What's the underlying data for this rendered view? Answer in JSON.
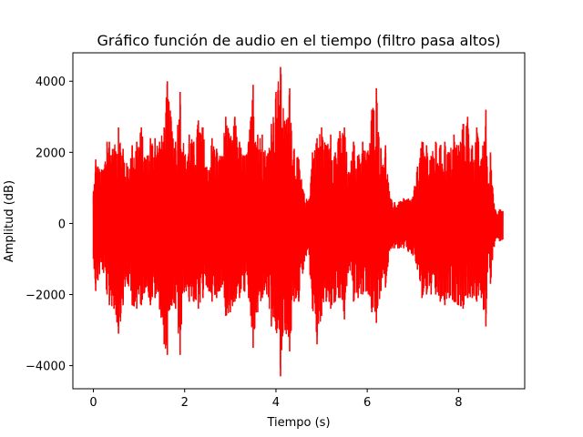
{
  "chart_data": {
    "type": "line",
    "title": "Gráfico función de audio en el tiempo (filtro pasa altos)",
    "xlabel": "Tiempo (s)",
    "ylabel": "Amplitud (dB)",
    "xlim": [
      -0.45,
      9.45
    ],
    "ylim": [
      -4650,
      4800
    ],
    "x_ticks": [
      0,
      2,
      4,
      6,
      8
    ],
    "x_tick_labels": [
      "0",
      "2",
      "4",
      "6",
      "8"
    ],
    "y_ticks": [
      -4000,
      -2000,
      0,
      2000,
      4000
    ],
    "y_tick_labels": [
      "−4000",
      "−2000",
      "0",
      "2000",
      "4000"
    ],
    "grid": false,
    "series": [
      {
        "color": "#ff0000",
        "envelope_t": [
          0.0,
          0.05,
          0.1,
          0.2,
          0.3,
          0.35,
          0.45,
          0.55,
          0.65,
          0.75,
          0.85,
          0.95,
          1.05,
          1.15,
          1.25,
          1.35,
          1.45,
          1.55,
          1.62,
          1.7,
          1.8,
          1.9,
          2.0,
          2.1,
          2.2,
          2.3,
          2.4,
          2.5,
          2.6,
          2.7,
          2.8,
          2.9,
          3.0,
          3.1,
          3.2,
          3.3,
          3.4,
          3.5,
          3.6,
          3.7,
          3.8,
          3.9,
          4.0,
          4.1,
          4.2,
          4.3,
          4.4,
          4.5,
          4.6,
          4.7,
          4.8,
          4.9,
          5.0,
          5.1,
          5.2,
          5.3,
          5.4,
          5.5,
          5.6,
          5.7,
          5.8,
          5.9,
          6.0,
          6.1,
          6.2,
          6.3,
          6.4,
          6.5,
          6.6,
          6.7,
          6.8,
          6.9,
          7.0,
          7.1,
          7.2,
          7.3,
          7.4,
          7.5,
          7.6,
          7.7,
          7.8,
          7.9,
          8.0,
          8.1,
          8.2,
          8.3,
          8.4,
          8.5,
          8.6,
          8.65,
          8.7,
          8.8,
          8.9,
          8.97
        ],
        "envelope_max": [
          900,
          1800,
          1600,
          1500,
          2300,
          2300,
          2100,
          2700,
          2100,
          1600,
          2200,
          2300,
          2700,
          1800,
          2400,
          2400,
          2300,
          2700,
          4000,
          3000,
          2300,
          3700,
          1900,
          2500,
          2300,
          2900,
          2700,
          1500,
          2400,
          2100,
          1900,
          3000,
          2400,
          3000,
          2300,
          1900,
          2300,
          3900,
          2500,
          2500,
          1900,
          2800,
          3700,
          4400,
          2800,
          3800,
          2100,
          1800,
          900,
          600,
          2000,
          2400,
          2700,
          2200,
          2500,
          2000,
          2600,
          2700,
          1300,
          2300,
          1900,
          2300,
          2000,
          3200,
          3800,
          2100,
          2200,
          700,
          600,
          600,
          700,
          700,
          750,
          1600,
          2300,
          2200,
          1900,
          2300,
          2200,
          2300,
          2000,
          2500,
          2200,
          2800,
          3000,
          2200,
          2700,
          1800,
          3200,
          900,
          2000,
          400,
          400,
          350
        ],
        "envelope_min": [
          -1000,
          -1900,
          -1600,
          -1300,
          -2000,
          -2300,
          -2400,
          -3100,
          -2300,
          -1700,
          -2300,
          -2400,
          -2300,
          -1800,
          -2300,
          -2100,
          -2400,
          -3400,
          -3700,
          -2300,
          -2400,
          -3700,
          -1800,
          -2200,
          -2200,
          -2400,
          -2100,
          -1800,
          -2200,
          -2100,
          -1800,
          -2600,
          -2500,
          -2200,
          -2100,
          -1900,
          -2100,
          -3500,
          -2500,
          -2100,
          -2000,
          -2900,
          -3000,
          -4300,
          -3000,
          -3600,
          -2200,
          -2200,
          -1300,
          -700,
          -2400,
          -3400,
          -2600,
          -2200,
          -2400,
          -2200,
          -2100,
          -2700,
          -1200,
          -2200,
          -2100,
          -2000,
          -1900,
          -2500,
          -2800,
          -1900,
          -1800,
          -700,
          -700,
          -700,
          -700,
          -800,
          -900,
          -1300,
          -2100,
          -2000,
          -2000,
          -2000,
          -2200,
          -2300,
          -2100,
          -2200,
          -2300,
          -2400,
          -2100,
          -2100,
          -2200,
          -2100,
          -2900,
          -800,
          -1700,
          -500,
          -500,
          -450
        ]
      }
    ]
  }
}
